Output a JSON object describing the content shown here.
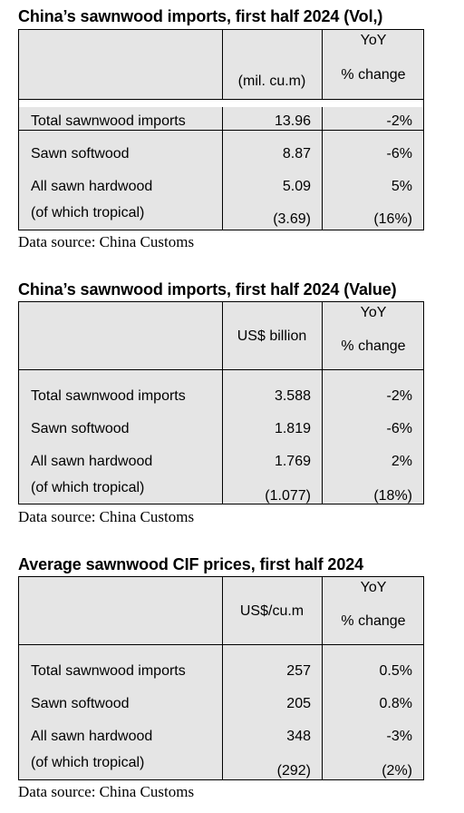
{
  "tables": [
    {
      "title": "China’s sawnwood imports, first half 2024 (Vol,)",
      "col_value": "(mil. cu.m)",
      "col_yoy_top": "YoY",
      "col_yoy_bottom": "% change",
      "rows": [
        {
          "label": "Total sawnwood imports",
          "value": "13.96",
          "change": "-2%"
        },
        {
          "label": "Sawn softwood",
          "value": "8.87",
          "change": "-6%"
        },
        {
          "label": "All sawn hardwood",
          "value": "5.09",
          "change": "5%"
        },
        {
          "label": "(of which tropical)",
          "value": "(3.69)",
          "change": "(16%)"
        }
      ],
      "source": "Data source: China Customs"
    },
    {
      "title": "China’s sawnwood imports, first half 2024 (Value)",
      "col_value": "US$ billion",
      "col_yoy_top": "YoY",
      "col_yoy_bottom": "% change",
      "rows": [
        {
          "label": "Total sawnwood imports",
          "value": "3.588",
          "change": "-2%"
        },
        {
          "label": "Sawn softwood",
          "value": "1.819",
          "change": "-6%"
        },
        {
          "label": "All sawn hardwood",
          "value": "1.769",
          "change": "2%"
        },
        {
          "label": "(of which tropical)",
          "value": "(1.077)",
          "change": "(18%)"
        }
      ],
      "source": "Data source: China Customs"
    },
    {
      "title": "Average sawnwood CIF prices, first half 2024",
      "col_value": "US$/cu.m",
      "col_yoy_top": "YoY",
      "col_yoy_bottom": "% change",
      "rows": [
        {
          "label": "Total sawnwood imports",
          "value": "257",
          "change": "0.5%"
        },
        {
          "label": "Sawn softwood",
          "value": "205",
          "change": "0.8%"
        },
        {
          "label": "All sawn hardwood",
          "value": "348",
          "change": "-3%"
        },
        {
          "label": "(of which tropical)",
          "value": "(292)",
          "change": "(2%)"
        }
      ],
      "source": "Data source: China Customs"
    }
  ]
}
